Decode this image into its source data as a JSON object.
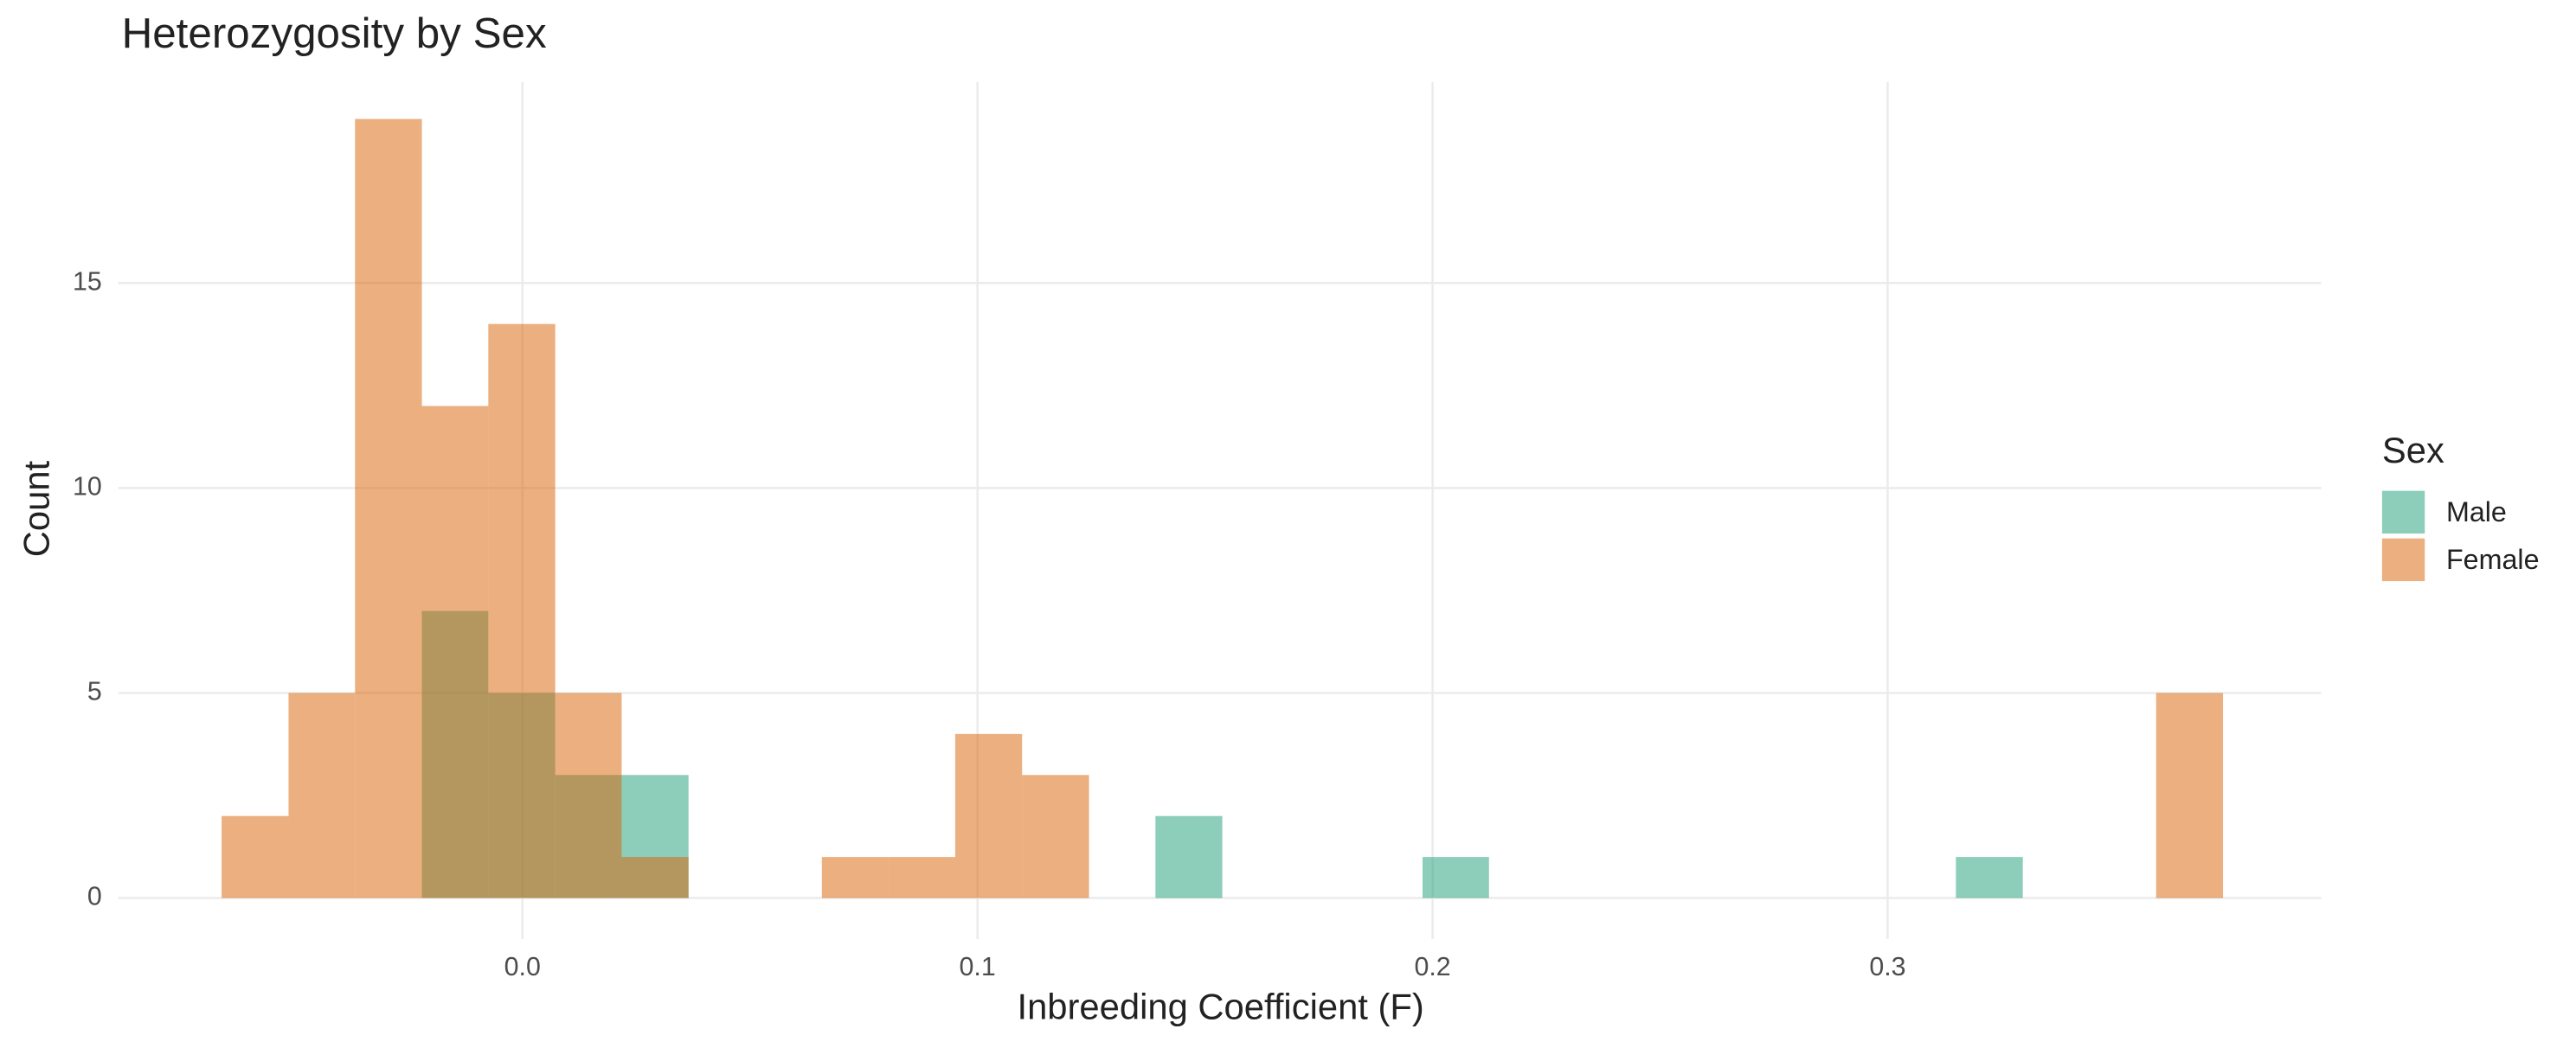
{
  "chart_data": {
    "type": "histogram",
    "title": "Heterozygosity by Sex",
    "xlabel": "Inbreeding Coefficient (F)",
    "ylabel": "Count",
    "legend_title": "Sex",
    "legend": "right",
    "bins": [
      -0.0661,
      -0.0514,
      -0.0368,
      -0.0221,
      -0.0075,
      0.0072,
      0.0218,
      0.0365,
      0.0512,
      0.0658,
      0.0805,
      0.0951,
      0.1098,
      0.1245,
      0.1391,
      0.1538,
      0.1684,
      0.1831,
      0.1978,
      0.2124,
      0.2271,
      0.2417,
      0.2564,
      0.2711,
      0.2857,
      0.3004,
      0.315,
      0.3297,
      0.3444,
      0.359,
      0.3737
    ],
    "series": [
      {
        "name": "Male",
        "color": "#1b9e77",
        "values": [
          0,
          0,
          0,
          7,
          5,
          3,
          3,
          0,
          0,
          0,
          0,
          0,
          0,
          0,
          2,
          0,
          0,
          0,
          1,
          0,
          0,
          0,
          0,
          0,
          0,
          0,
          1,
          0,
          0,
          0
        ]
      },
      {
        "name": "Female",
        "color": "#d95f02",
        "values": [
          2,
          5,
          19,
          12,
          14,
          5,
          1,
          0,
          0,
          1,
          1,
          4,
          3,
          0,
          0,
          0,
          0,
          0,
          0,
          0,
          0,
          0,
          0,
          0,
          0,
          0,
          0,
          0,
          0,
          5
        ]
      }
    ],
    "opacity": 0.5,
    "xlim": [
      -0.0888,
      0.3953
    ],
    "ylim": [
      -1.0,
      19.9
    ],
    "xticks": [
      {
        "value": 0,
        "label": "0.0"
      },
      0.1,
      0.2,
      0.3
    ],
    "yticks": [
      0,
      5,
      10,
      15
    ],
    "grid": true
  }
}
